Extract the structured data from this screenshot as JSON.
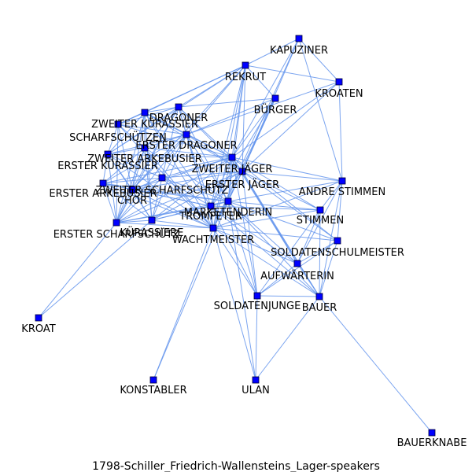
{
  "caption": "1798-Schiller_Friedrich-Wallensteins_Lager-speakers",
  "nodes": [
    {
      "id": "KAPUZINER",
      "label": "KAPUZINER"
    },
    {
      "id": "REKRUT",
      "label": "REKRUT"
    },
    {
      "id": "KROATEN",
      "label": "KROATEN"
    },
    {
      "id": "BUERGER",
      "label": "BÜRGER"
    },
    {
      "id": "DRAGONER",
      "label": "DRAGONER"
    },
    {
      "id": "ZWEITER_KURASSIER",
      "label": "ZWEITER KÜRASSIER"
    },
    {
      "id": "SCHARFSCHUETZEN",
      "label": "SCHARFSCHÜTZEN"
    },
    {
      "id": "ERSTER_DRAGONER",
      "label": "ERSTER DRAGONER"
    },
    {
      "id": "ZWEITER_ARKEBUSIER",
      "label": "ZWEITER ARKEBUSIER"
    },
    {
      "id": "ERSTER_KURASSIER",
      "label": "ERSTER KÜRASSIER"
    },
    {
      "id": "ZWEITER_JAEGER",
      "label": "ZWEITER JÄGER"
    },
    {
      "id": "ERSTER_ARKEBUSIER",
      "label": "ERSTER ARKEBUSIER"
    },
    {
      "id": "ZWEITER_SCHARFSCHUETZ",
      "label": "ZWEITER SCHARFSCHÜTZ"
    },
    {
      "id": "ERSTER_JAEGER",
      "label": "ERSTER JÄGER"
    },
    {
      "id": "ANDRE_STIMMEN",
      "label": "ANDRE STIMMEN"
    },
    {
      "id": "CHOR",
      "label": "CHOR"
    },
    {
      "id": "MARKETENDERIN",
      "label": "MARKETENDERIN"
    },
    {
      "id": "TROMPETER",
      "label": "TROMPETER"
    },
    {
      "id": "STIMMEN",
      "label": "STIMMEN"
    },
    {
      "id": "ERSTER_SCHARFSCHUETZ",
      "label": "ERSTER SCHARFSCHÜTZ"
    },
    {
      "id": "KUERASSIERE",
      "label": "KÜRASSIERE"
    },
    {
      "id": "WACHTMEISTER",
      "label": "WACHTMEISTER"
    },
    {
      "id": "SOLDATENSCHULMEISTER",
      "label": "SOLDATENSCHULMEISTER"
    },
    {
      "id": "AUFWAERTERIN",
      "label": "AUFWÄRTERIN"
    },
    {
      "id": "SOLDATENJUNGE",
      "label": "SOLDATENJUNGE"
    },
    {
      "id": "BAUER",
      "label": "BAUER"
    },
    {
      "id": "KROAT",
      "label": "KROAT"
    },
    {
      "id": "KONSTABLER",
      "label": "KONSTABLER"
    },
    {
      "id": "ULAN",
      "label": "ULAN"
    },
    {
      "id": "BAUERKNABE",
      "label": "BAUERKNABE"
    }
  ],
  "edges": [
    [
      "KAPUZINER",
      "REKRUT"
    ],
    [
      "KAPUZINER",
      "KROATEN"
    ],
    [
      "KAPUZINER",
      "ZWEITER_JAEGER"
    ],
    [
      "KAPUZINER",
      "ERSTER_JAEGER"
    ],
    [
      "KAPUZINER",
      "ANDRE_STIMMEN"
    ],
    [
      "KAPUZINER",
      "WACHTMEISTER"
    ],
    [
      "REKRUT",
      "BUERGER"
    ],
    [
      "REKRUT",
      "KROATEN"
    ],
    [
      "REKRUT",
      "DRAGONER"
    ],
    [
      "REKRUT",
      "ERSTER_DRAGONER"
    ],
    [
      "REKRUT",
      "ZWEITER_KURASSIER"
    ],
    [
      "REKRUT",
      "ERSTER_JAEGER"
    ],
    [
      "REKRUT",
      "ZWEITER_JAEGER"
    ],
    [
      "REKRUT",
      "WACHTMEISTER"
    ],
    [
      "REKRUT",
      "MARKETENDERIN"
    ],
    [
      "REKRUT",
      "TROMPETER"
    ],
    [
      "REKRUT",
      "ERSTER_KURASSIER"
    ],
    [
      "REKRUT",
      "SCHARFSCHUETZEN"
    ],
    [
      "REKRUT",
      "CHOR"
    ],
    [
      "KROATEN",
      "ZWEITER_JAEGER"
    ],
    [
      "KROATEN",
      "ANDRE_STIMMEN"
    ],
    [
      "KROATEN",
      "ERSTER_JAEGER"
    ],
    [
      "KROATEN",
      "ERSTER_DRAGONER"
    ],
    [
      "BUERGER",
      "ZWEITER_JAEGER"
    ],
    [
      "BUERGER",
      "ERSTER_JAEGER"
    ],
    [
      "BUERGER",
      "WACHTMEISTER"
    ],
    [
      "BUERGER",
      "MARKETENDERIN"
    ],
    [
      "BUERGER",
      "DRAGONER"
    ],
    [
      "BUERGER",
      "ERSTER_DRAGONER"
    ],
    [
      "BUERGER",
      "TROMPETER"
    ],
    [
      "DRAGONER",
      "ZWEITER_KURASSIER"
    ],
    [
      "DRAGONER",
      "SCHARFSCHUETZEN"
    ],
    [
      "DRAGONER",
      "ERSTER_DRAGONER"
    ],
    [
      "DRAGONER",
      "ZWEITER_ARKEBUSIER"
    ],
    [
      "DRAGONER",
      "ERSTER_KURASSIER"
    ],
    [
      "DRAGONER",
      "ZWEITER_JAEGER"
    ],
    [
      "DRAGONER",
      "ERSTER_JAEGER"
    ],
    [
      "DRAGONER",
      "CHOR"
    ],
    [
      "DRAGONER",
      "WACHTMEISTER"
    ],
    [
      "DRAGONER",
      "ERSTER_SCHARFSCHUETZ"
    ],
    [
      "DRAGONER",
      "MARKETENDERIN"
    ],
    [
      "DRAGONER",
      "ZWEITER_SCHARFSCHUETZ"
    ],
    [
      "ZWEITER_KURASSIER",
      "SCHARFSCHUETZEN"
    ],
    [
      "ZWEITER_KURASSIER",
      "ERSTER_DRAGONER"
    ],
    [
      "ZWEITER_KURASSIER",
      "ZWEITER_ARKEBUSIER"
    ],
    [
      "ZWEITER_KURASSIER",
      "ERSTER_KURASSIER"
    ],
    [
      "ZWEITER_KURASSIER",
      "ZWEITER_JAEGER"
    ],
    [
      "ZWEITER_KURASSIER",
      "ERSTER_JAEGER"
    ],
    [
      "ZWEITER_KURASSIER",
      "CHOR"
    ],
    [
      "ZWEITER_KURASSIER",
      "WACHTMEISTER"
    ],
    [
      "ZWEITER_KURASSIER",
      "ERSTER_SCHARFSCHUETZ"
    ],
    [
      "ZWEITER_KURASSIER",
      "TROMPETER"
    ],
    [
      "ZWEITER_KURASSIER",
      "KUERASSIERE"
    ],
    [
      "SCHARFSCHUETZEN",
      "ERSTER_DRAGONER"
    ],
    [
      "SCHARFSCHUETZEN",
      "ZWEITER_ARKEBUSIER"
    ],
    [
      "SCHARFSCHUETZEN",
      "ERSTER_KURASSIER"
    ],
    [
      "SCHARFSCHUETZEN",
      "ZWEITER_JAEGER"
    ],
    [
      "SCHARFSCHUETZEN",
      "CHOR"
    ],
    [
      "SCHARFSCHUETZEN",
      "WACHTMEISTER"
    ],
    [
      "SCHARFSCHUETZEN",
      "ERSTER_SCHARFSCHUETZ"
    ],
    [
      "ERSTER_DRAGONER",
      "ZWEITER_ARKEBUSIER"
    ],
    [
      "ERSTER_DRAGONER",
      "ERSTER_KURASSIER"
    ],
    [
      "ERSTER_DRAGONER",
      "ZWEITER_JAEGER"
    ],
    [
      "ERSTER_DRAGONER",
      "ERSTER_JAEGER"
    ],
    [
      "ERSTER_DRAGONER",
      "ERSTER_ARKEBUSIER"
    ],
    [
      "ERSTER_DRAGONER",
      "ZWEITER_SCHARFSCHUETZ"
    ],
    [
      "ERSTER_DRAGONER",
      "CHOR"
    ],
    [
      "ERSTER_DRAGONER",
      "MARKETENDERIN"
    ],
    [
      "ERSTER_DRAGONER",
      "TROMPETER"
    ],
    [
      "ERSTER_DRAGONER",
      "WACHTMEISTER"
    ],
    [
      "ERSTER_DRAGONER",
      "ERSTER_SCHARFSCHUETZ"
    ],
    [
      "ERSTER_DRAGONER",
      "KUERASSIERE"
    ],
    [
      "ZWEITER_ARKEBUSIER",
      "ERSTER_KURASSIER"
    ],
    [
      "ZWEITER_ARKEBUSIER",
      "ZWEITER_JAEGER"
    ],
    [
      "ZWEITER_ARKEBUSIER",
      "ERSTER_ARKEBUSIER"
    ],
    [
      "ZWEITER_ARKEBUSIER",
      "ZWEITER_SCHARFSCHUETZ"
    ],
    [
      "ZWEITER_ARKEBUSIER",
      "CHOR"
    ],
    [
      "ZWEITER_ARKEBUSIER",
      "WACHTMEISTER"
    ],
    [
      "ZWEITER_ARKEBUSIER",
      "ERSTER_SCHARFSCHUETZ"
    ],
    [
      "ZWEITER_ARKEBUSIER",
      "MARKETENDERIN"
    ],
    [
      "ZWEITER_ARKEBUSIER",
      "KUERASSIERE"
    ],
    [
      "ERSTER_KURASSIER",
      "ERSTER_ARKEBUSIER"
    ],
    [
      "ERSTER_KURASSIER",
      "ZWEITER_SCHARFSCHUETZ"
    ],
    [
      "ERSTER_KURASSIER",
      "CHOR"
    ],
    [
      "ERSTER_KURASSIER",
      "ERSTER_SCHARFSCHUETZ"
    ],
    [
      "ERSTER_KURASSIER",
      "ZWEITER_JAEGER"
    ],
    [
      "ERSTER_KURASSIER",
      "KUERASSIERE"
    ],
    [
      "ERSTER_KURASSIER",
      "WACHTMEISTER"
    ],
    [
      "ZWEITER_JAEGER",
      "ERSTER_JAEGER"
    ],
    [
      "ZWEITER_JAEGER",
      "ANDRE_STIMMEN"
    ],
    [
      "ZWEITER_JAEGER",
      "STIMMEN"
    ],
    [
      "ZWEITER_JAEGER",
      "MARKETENDERIN"
    ],
    [
      "ZWEITER_JAEGER",
      "TROMPETER"
    ],
    [
      "ZWEITER_JAEGER",
      "WACHTMEISTER"
    ],
    [
      "ZWEITER_JAEGER",
      "SOLDATENSCHULMEISTER"
    ],
    [
      "ZWEITER_JAEGER",
      "AUFWAERTERIN"
    ],
    [
      "ZWEITER_JAEGER",
      "SOLDATENJUNGE"
    ],
    [
      "ZWEITER_JAEGER",
      "BAUER"
    ],
    [
      "ZWEITER_JAEGER",
      "ERSTER_ARKEBUSIER"
    ],
    [
      "ZWEITER_JAEGER",
      "ZWEITER_SCHARFSCHUETZ"
    ],
    [
      "ZWEITER_JAEGER",
      "CHOR"
    ],
    [
      "ZWEITER_JAEGER",
      "ERSTER_SCHARFSCHUETZ"
    ],
    [
      "ZWEITER_JAEGER",
      "KUERASSIERE"
    ],
    [
      "ERSTER_ARKEBUSIER",
      "ZWEITER_SCHARFSCHUETZ"
    ],
    [
      "ERSTER_ARKEBUSIER",
      "CHOR"
    ],
    [
      "ERSTER_ARKEBUSIER",
      "ERSTER_SCHARFSCHUETZ"
    ],
    [
      "ERSTER_ARKEBUSIER",
      "MARKETENDERIN"
    ],
    [
      "ERSTER_ARKEBUSIER",
      "WACHTMEISTER"
    ],
    [
      "ERSTER_ARKEBUSIER",
      "KUERASSIERE"
    ],
    [
      "ERSTER_ARKEBUSIER",
      "TROMPETER"
    ],
    [
      "ZWEITER_SCHARFSCHUETZ",
      "CHOR"
    ],
    [
      "ZWEITER_SCHARFSCHUETZ",
      "MARKETENDERIN"
    ],
    [
      "ZWEITER_SCHARFSCHUETZ",
      "TROMPETER"
    ],
    [
      "ZWEITER_SCHARFSCHUETZ",
      "WACHTMEISTER"
    ],
    [
      "ZWEITER_SCHARFSCHUETZ",
      "ERSTER_SCHARFSCHUETZ"
    ],
    [
      "ZWEITER_SCHARFSCHUETZ",
      "KUERASSIERE"
    ],
    [
      "ZWEITER_SCHARFSCHUETZ",
      "ERSTER_JAEGER"
    ],
    [
      "ERSTER_JAEGER",
      "ANDRE_STIMMEN"
    ],
    [
      "ERSTER_JAEGER",
      "STIMMEN"
    ],
    [
      "ERSTER_JAEGER",
      "MARKETENDERIN"
    ],
    [
      "ERSTER_JAEGER",
      "TROMPETER"
    ],
    [
      "ERSTER_JAEGER",
      "WACHTMEISTER"
    ],
    [
      "ERSTER_JAEGER",
      "SOLDATENSCHULMEISTER"
    ],
    [
      "ERSTER_JAEGER",
      "AUFWAERTERIN"
    ],
    [
      "ERSTER_JAEGER",
      "SOLDATENJUNGE"
    ],
    [
      "ERSTER_JAEGER",
      "BAUER"
    ],
    [
      "ERSTER_JAEGER",
      "CHOR"
    ],
    [
      "ERSTER_JAEGER",
      "ERSTER_SCHARFSCHUETZ"
    ],
    [
      "ERSTER_JAEGER",
      "KUERASSIERE"
    ],
    [
      "ANDRE_STIMMEN",
      "STIMMEN"
    ],
    [
      "ANDRE_STIMMEN",
      "SOLDATENSCHULMEISTER"
    ],
    [
      "ANDRE_STIMMEN",
      "AUFWAERTERIN"
    ],
    [
      "ANDRE_STIMMEN",
      "WACHTMEISTER"
    ],
    [
      "ANDRE_STIMMEN",
      "MARKETENDERIN"
    ],
    [
      "ANDRE_STIMMEN",
      "BAUER"
    ],
    [
      "CHOR",
      "MARKETENDERIN"
    ],
    [
      "CHOR",
      "TROMPETER"
    ],
    [
      "CHOR",
      "WACHTMEISTER"
    ],
    [
      "CHOR",
      "ERSTER_SCHARFSCHUETZ"
    ],
    [
      "CHOR",
      "KUERASSIERE"
    ],
    [
      "MARKETENDERIN",
      "TROMPETER"
    ],
    [
      "MARKETENDERIN",
      "STIMMEN"
    ],
    [
      "MARKETENDERIN",
      "WACHTMEISTER"
    ],
    [
      "MARKETENDERIN",
      "ERSTER_SCHARFSCHUETZ"
    ],
    [
      "MARKETENDERIN",
      "KUERASSIERE"
    ],
    [
      "MARKETENDERIN",
      "SOLDATENSCHULMEISTER"
    ],
    [
      "MARKETENDERIN",
      "AUFWAERTERIN"
    ],
    [
      "MARKETENDERIN",
      "SOLDATENJUNGE"
    ],
    [
      "MARKETENDERIN",
      "BAUER"
    ],
    [
      "MARKETENDERIN",
      "KONSTABLER"
    ],
    [
      "MARKETENDERIN",
      "ULAN"
    ],
    [
      "TROMPETER",
      "WACHTMEISTER"
    ],
    [
      "TROMPETER",
      "ERSTER_SCHARFSCHUETZ"
    ],
    [
      "TROMPETER",
      "KUERASSIERE"
    ],
    [
      "TROMPETER",
      "STIMMEN"
    ],
    [
      "TROMPETER",
      "SOLDATENJUNGE"
    ],
    [
      "TROMPETER",
      "AUFWAERTERIN"
    ],
    [
      "TROMPETER",
      "BAUER"
    ],
    [
      "STIMMEN",
      "WACHTMEISTER"
    ],
    [
      "STIMMEN",
      "AUFWAERTERIN"
    ],
    [
      "STIMMEN",
      "BAUER"
    ],
    [
      "STIMMEN",
      "SOLDATENJUNGE"
    ],
    [
      "ERSTER_SCHARFSCHUETZ",
      "KUERASSIERE"
    ],
    [
      "ERSTER_SCHARFSCHUETZ",
      "WACHTMEISTER"
    ],
    [
      "ERSTER_SCHARFSCHUETZ",
      "KROAT"
    ],
    [
      "KUERASSIERE",
      "WACHTMEISTER"
    ],
    [
      "KUERASSIERE",
      "KROAT"
    ],
    [
      "WACHTMEISTER",
      "SOLDATENSCHULMEISTER"
    ],
    [
      "WACHTMEISTER",
      "AUFWAERTERIN"
    ],
    [
      "WACHTMEISTER",
      "SOLDATENJUNGE"
    ],
    [
      "WACHTMEISTER",
      "BAUER"
    ],
    [
      "WACHTMEISTER",
      "KONSTABLER"
    ],
    [
      "WACHTMEISTER",
      "ULAN"
    ],
    [
      "SOLDATENSCHULMEISTER",
      "AUFWAERTERIN"
    ],
    [
      "SOLDATENSCHULMEISTER",
      "SOLDATENJUNGE"
    ],
    [
      "SOLDATENSCHULMEISTER",
      "BAUER"
    ],
    [
      "AUFWAERTERIN",
      "SOLDATENJUNGE"
    ],
    [
      "AUFWAERTERIN",
      "BAUER"
    ],
    [
      "SOLDATENJUNGE",
      "BAUER"
    ],
    [
      "SOLDATENJUNGE",
      "ULAN"
    ],
    [
      "BAUER",
      "BAUERKNABE"
    ],
    [
      "BAUER",
      "ULAN"
    ]
  ]
}
